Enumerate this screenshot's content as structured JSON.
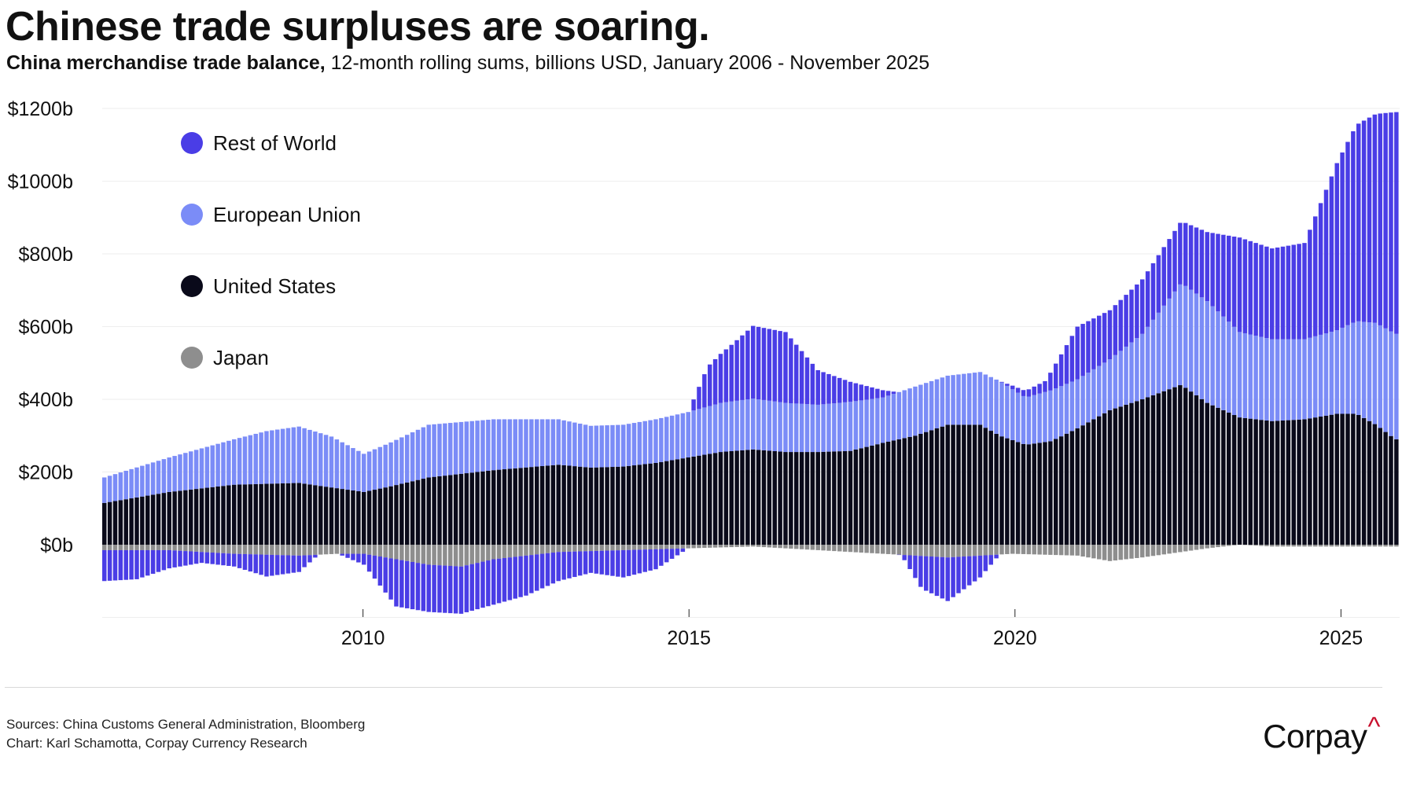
{
  "header": {
    "title": "Chinese trade surpluses are soaring.",
    "subtitle_bold": "China merchandise trade balance,",
    "subtitle_rest": " 12-month rolling sums, billions USD, January 2006 - November 2025"
  },
  "footer": {
    "sources": "Sources: China Customs General Administration, Bloomberg",
    "credit": "Chart: Karl Schamotta, Corpay Currency Research",
    "logo_text": "Corpay",
    "logo_mark": "^"
  },
  "colors": {
    "rest_of_world": "#4a3de6",
    "european_union": "#7b8cf7",
    "united_states": "#0a0a1a",
    "japan": "#8e8e8e",
    "grid": "#eeeeee"
  },
  "chart_data": {
    "type": "bar",
    "stacked": true,
    "x_start": 2006.0,
    "x_step_years": 0.08333,
    "x_range": [
      2006.0,
      2025.9
    ],
    "ylim": [
      -200,
      1200
    ],
    "yticks": [
      0,
      200,
      400,
      600,
      800,
      1000,
      1200
    ],
    "ytick_labels": [
      "$0b",
      "$200b",
      "$400b",
      "$600b",
      "$800b",
      "$1000b",
      "$1200b"
    ],
    "xticks": [
      2010,
      2015,
      2020,
      2025
    ],
    "xtick_labels": [
      "2010",
      "2015",
      "2020",
      "2025"
    ],
    "grid": true,
    "legend_position": "top-left",
    "anchor_note": "Values given at anchor dates (fractional years, billions USD); bars are monthly and interpolated between anchors.",
    "series": [
      {
        "name": "United States",
        "color_key": "united_states",
        "anchors": [
          [
            2006.0,
            115
          ],
          [
            2007.0,
            145
          ],
          [
            2008.0,
            165
          ],
          [
            2009.0,
            170
          ],
          [
            2009.6,
            155
          ],
          [
            2010.0,
            145
          ],
          [
            2010.4,
            160
          ],
          [
            2011.0,
            185
          ],
          [
            2012.0,
            205
          ],
          [
            2013.0,
            220
          ],
          [
            2013.5,
            212
          ],
          [
            2014.0,
            215
          ],
          [
            2014.5,
            225
          ],
          [
            2015.0,
            240
          ],
          [
            2015.5,
            255
          ],
          [
            2016.0,
            262
          ],
          [
            2016.5,
            255
          ],
          [
            2017.0,
            255
          ],
          [
            2017.5,
            258
          ],
          [
            2018.0,
            280
          ],
          [
            2018.5,
            300
          ],
          [
            2019.0,
            330
          ],
          [
            2019.5,
            330
          ],
          [
            2019.8,
            300
          ],
          [
            2020.2,
            275
          ],
          [
            2020.6,
            285
          ],
          [
            2021.0,
            320
          ],
          [
            2021.5,
            370
          ],
          [
            2022.0,
            400
          ],
          [
            2022.6,
            440
          ],
          [
            2023.0,
            390
          ],
          [
            2023.5,
            350
          ],
          [
            2024.0,
            340
          ],
          [
            2024.5,
            345
          ],
          [
            2025.0,
            360
          ],
          [
            2025.3,
            360
          ],
          [
            2025.6,
            330
          ],
          [
            2025.9,
            290
          ]
        ]
      },
      {
        "name": "European Union",
        "color_key": "european_union",
        "anchors": [
          [
            2006.0,
            70
          ],
          [
            2007.0,
            95
          ],
          [
            2008.0,
            125
          ],
          [
            2008.5,
            145
          ],
          [
            2009.0,
            155
          ],
          [
            2009.5,
            140
          ],
          [
            2010.0,
            105
          ],
          [
            2010.4,
            120
          ],
          [
            2011.0,
            145
          ],
          [
            2012.0,
            140
          ],
          [
            2013.0,
            125
          ],
          [
            2013.5,
            115
          ],
          [
            2014.0,
            115
          ],
          [
            2014.5,
            120
          ],
          [
            2015.0,
            125
          ],
          [
            2015.5,
            135
          ],
          [
            2016.0,
            140
          ],
          [
            2016.5,
            135
          ],
          [
            2017.0,
            130
          ],
          [
            2017.5,
            135
          ],
          [
            2018.0,
            125
          ],
          [
            2018.5,
            135
          ],
          [
            2019.0,
            135
          ],
          [
            2019.5,
            145
          ],
          [
            2019.8,
            150
          ],
          [
            2020.2,
            130
          ],
          [
            2020.6,
            140
          ],
          [
            2021.0,
            135
          ],
          [
            2021.5,
            140
          ],
          [
            2022.0,
            180
          ],
          [
            2022.6,
            280
          ],
          [
            2023.0,
            280
          ],
          [
            2023.5,
            235
          ],
          [
            2024.0,
            225
          ],
          [
            2024.5,
            220
          ],
          [
            2025.0,
            230
          ],
          [
            2025.3,
            255
          ],
          [
            2025.6,
            280
          ],
          [
            2025.9,
            290
          ]
        ]
      },
      {
        "name": "Rest of World",
        "color_key": "rest_of_world",
        "anchors": [
          [
            2006.0,
            -85
          ],
          [
            2006.5,
            -80
          ],
          [
            2007.0,
            -50
          ],
          [
            2007.5,
            -30
          ],
          [
            2008.0,
            -35
          ],
          [
            2008.5,
            -60
          ],
          [
            2009.0,
            -45
          ],
          [
            2009.3,
            0
          ],
          [
            2009.6,
            0
          ],
          [
            2010.0,
            -30
          ],
          [
            2010.5,
            -130
          ],
          [
            2011.0,
            -130
          ],
          [
            2011.5,
            -130
          ],
          [
            2012.0,
            -125
          ],
          [
            2012.5,
            -110
          ],
          [
            2013.0,
            -80
          ],
          [
            2013.5,
            -60
          ],
          [
            2014.0,
            -75
          ],
          [
            2014.5,
            -55
          ],
          [
            2015.0,
            0
          ],
          [
            2015.3,
            110
          ],
          [
            2015.7,
            160
          ],
          [
            2016.0,
            200
          ],
          [
            2016.5,
            195
          ],
          [
            2017.0,
            95
          ],
          [
            2017.5,
            55
          ],
          [
            2018.0,
            20
          ],
          [
            2018.3,
            -5
          ],
          [
            2018.6,
            -90
          ],
          [
            2019.0,
            -120
          ],
          [
            2019.5,
            -60
          ],
          [
            2019.8,
            0
          ],
          [
            2020.0,
            10
          ],
          [
            2020.5,
            30
          ],
          [
            2021.0,
            145
          ],
          [
            2021.5,
            135
          ],
          [
            2022.0,
            150
          ],
          [
            2022.6,
            170
          ],
          [
            2023.0,
            190
          ],
          [
            2023.5,
            260
          ],
          [
            2024.0,
            250
          ],
          [
            2024.5,
            265
          ],
          [
            2025.0,
            460
          ],
          [
            2025.3,
            540
          ],
          [
            2025.6,
            575
          ],
          [
            2025.9,
            610
          ]
        ]
      },
      {
        "name": "Japan",
        "color_key": "japan",
        "anchors": [
          [
            2006.0,
            -15
          ],
          [
            2007.0,
            -15
          ],
          [
            2008.0,
            -25
          ],
          [
            2009.0,
            -30
          ],
          [
            2009.6,
            -25
          ],
          [
            2010.0,
            -25
          ],
          [
            2011.0,
            -55
          ],
          [
            2011.5,
            -60
          ],
          [
            2012.0,
            -40
          ],
          [
            2013.0,
            -20
          ],
          [
            2014.0,
            -15
          ],
          [
            2015.0,
            -10
          ],
          [
            2016.0,
            -5
          ],
          [
            2017.0,
            -15
          ],
          [
            2018.0,
            -25
          ],
          [
            2019.0,
            -35
          ],
          [
            2020.0,
            -25
          ],
          [
            2021.0,
            -30
          ],
          [
            2021.5,
            -45
          ],
          [
            2022.0,
            -35
          ],
          [
            2023.0,
            -10
          ],
          [
            2023.5,
            0
          ],
          [
            2024.0,
            -5
          ],
          [
            2025.0,
            -5
          ],
          [
            2025.9,
            -5
          ]
        ]
      }
    ]
  },
  "legend": {
    "items": [
      {
        "label": "Rest of World",
        "color_key": "rest_of_world"
      },
      {
        "label": "European Union",
        "color_key": "european_union"
      },
      {
        "label": "United States",
        "color_key": "united_states"
      },
      {
        "label": "Japan",
        "color_key": "japan"
      }
    ]
  }
}
